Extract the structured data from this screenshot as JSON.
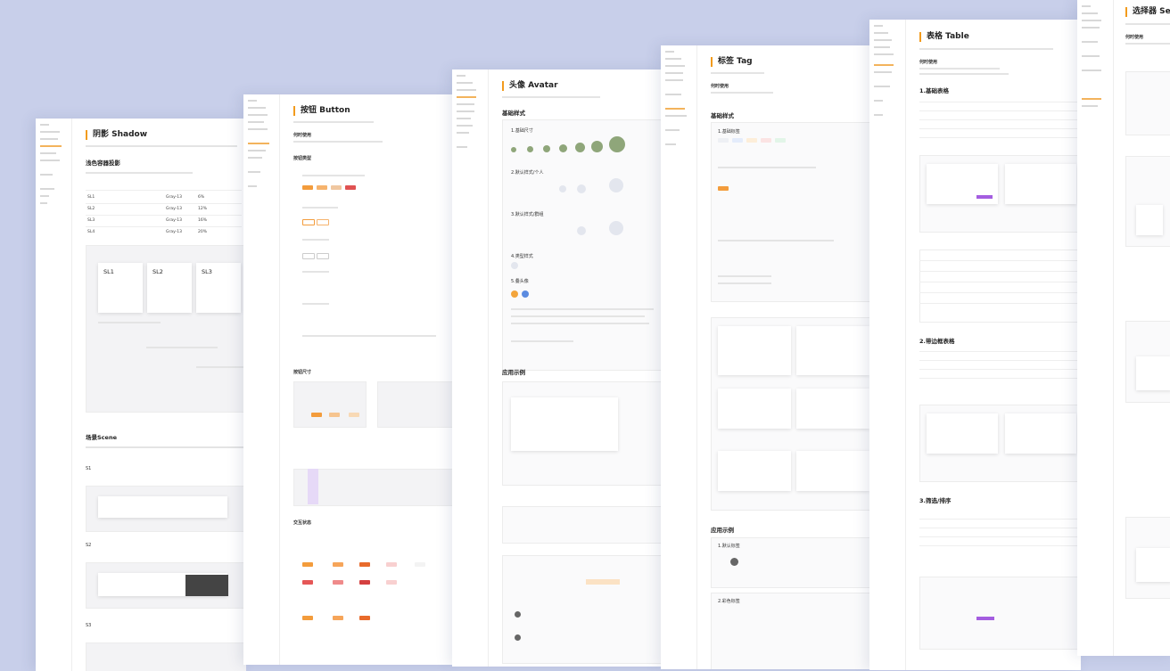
{
  "shadow": {
    "title": "阴影 Shadow",
    "section": "浅色容器投影",
    "table": [
      [
        "SL1",
        "Gray-13",
        "6%"
      ],
      [
        "SL2",
        "Gray-13",
        "12%"
      ],
      [
        "SL3",
        "Gray-13",
        "16%"
      ],
      [
        "SL4",
        "Gray-13",
        "20%"
      ]
    ],
    "cards": [
      "SL1",
      "SL2",
      "SL3"
    ],
    "scene": "场景Scene",
    "scenes": [
      "S1",
      "S2",
      "S3"
    ]
  },
  "button": {
    "title": "按钮 Button",
    "sections": [
      "何时使用",
      "按钮类型",
      "按钮尺寸",
      "交互状态"
    ]
  },
  "avatar": {
    "title": "头像 Avatar",
    "section": "基础样式",
    "items": [
      "1.基础尺寸",
      "2.默认样式/个人",
      "3.默认样式/群组",
      "4.类型样式",
      "5.叠头像"
    ],
    "examples": "应用示例"
  },
  "tag": {
    "title": "标签 Tag",
    "sections": [
      "何时使用",
      "基础样式"
    ],
    "items": [
      "1.基础标签"
    ],
    "examples": "应用示例",
    "example_items": [
      "1.默认标签",
      "2.彩色标签"
    ]
  },
  "table": {
    "title": "表格 Table",
    "intro": "何时使用",
    "sections": [
      "1.基础表格",
      "2.带边框表格",
      "3.筛选/排序"
    ]
  },
  "select": {
    "title": "选择器 Select",
    "intro": "何时使用"
  }
}
